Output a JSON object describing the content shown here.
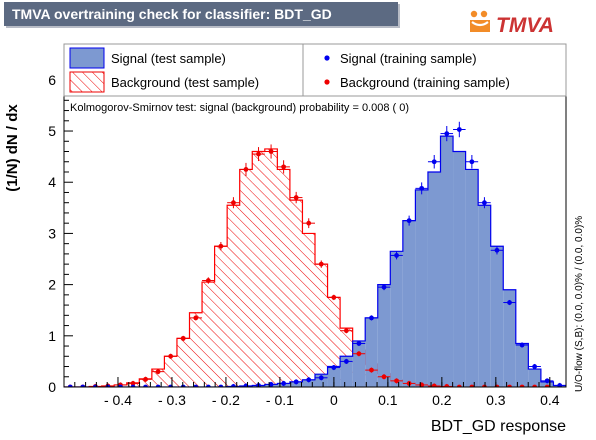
{
  "header": {
    "title": "TMVA overtraining check for classifier: BDT_GD",
    "logo_text": "TMVA"
  },
  "chart_data": {
    "type": "histogram",
    "xlabel": "BDT_GD response",
    "ylabel": "(1/N) dN / dx",
    "xlim": [
      -0.5,
      0.43
    ],
    "ylim": [
      0,
      6.7
    ],
    "x_ticks": [
      -0.4,
      -0.3,
      -0.2,
      -0.1,
      0,
      0.1,
      0.2,
      0.3,
      0.4
    ],
    "x_tick_labels": [
      "- 0.4",
      "- 0.3",
      "- 0.2",
      "- 0.1",
      "0",
      "0.1",
      "0.2",
      "0.3",
      "0.4"
    ],
    "y_ticks": [
      0,
      1,
      2,
      3,
      4,
      5,
      6
    ],
    "y_tick_labels": [
      "0",
      "1",
      "2",
      "3",
      "4",
      "5",
      "6"
    ],
    "grid": false,
    "bin_edges_range": [
      -0.5,
      0.43
    ],
    "bin_count": 40,
    "ks_text": "Kolmogorov-Smirnov test: signal (background) probability = 0.008 (    0)",
    "overflow_text": "U/O-flow (S,B): (0.0, 0.0)% / (0.0, 0.0)%",
    "legend": [
      {
        "label": "Signal (test sample)",
        "style": "filled"
      },
      {
        "label": "Background (test sample)",
        "style": "hatched"
      },
      {
        "label": "Signal (training sample)",
        "style": "marker-blue"
      },
      {
        "label": "Background (training sample)",
        "style": "marker-red"
      }
    ],
    "series": [
      {
        "name": "Signal (test sample)",
        "color": "#7d99d1",
        "edge_color": "#0000ee",
        "values": [
          0,
          0,
          0,
          0,
          0,
          0,
          0,
          0,
          0,
          0,
          0,
          0,
          0,
          0.01,
          0.02,
          0.03,
          0.05,
          0.07,
          0.1,
          0.14,
          0.25,
          0.4,
          0.6,
          0.9,
          1.35,
          2.0,
          2.65,
          3.25,
          3.85,
          4.2,
          4.9,
          4.6,
          4.25,
          3.55,
          2.75,
          1.9,
          0.85,
          0.35,
          0.1,
          0.03
        ]
      },
      {
        "name": "Background (test sample)",
        "color": "#cc3333",
        "edge_color": "#ff0000",
        "values": [
          0,
          0,
          0.01,
          0.02,
          0.04,
          0.08,
          0.16,
          0.35,
          0.6,
          0.95,
          1.45,
          2.05,
          2.75,
          3.55,
          4.25,
          4.6,
          4.65,
          4.25,
          3.65,
          3.0,
          2.4,
          1.75,
          1.15,
          0.72,
          0.45,
          0.26,
          0.14,
          0.08,
          0.04,
          0.02,
          0.01,
          0,
          0,
          0,
          0,
          0,
          0,
          0,
          0,
          0
        ]
      },
      {
        "name": "Signal (training sample)",
        "color": "#0000ee",
        "values": [
          0,
          0,
          0,
          0,
          0,
          0,
          0,
          0,
          0,
          0,
          0,
          0,
          0,
          0.01,
          0.02,
          0.03,
          0.05,
          0.07,
          0.1,
          0.14,
          0.18,
          0.38,
          0.5,
          0.85,
          1.35,
          1.95,
          2.57,
          3.25,
          3.88,
          4.4,
          4.95,
          5.03,
          4.4,
          3.6,
          2.67,
          1.65,
          0.82,
          0.4,
          0.12,
          0.03
        ]
      },
      {
        "name": "Background (training sample)",
        "color": "#ee0000",
        "values": [
          0,
          0,
          0.01,
          0.02,
          0.04,
          0.07,
          0.15,
          0.3,
          0.6,
          0.95,
          1.35,
          2.08,
          2.75,
          3.6,
          4.25,
          4.55,
          4.6,
          4.3,
          3.7,
          3.2,
          2.4,
          1.75,
          1.1,
          0.65,
          0.33,
          0.2,
          0.12,
          0.07,
          0.04,
          0.02,
          0.01,
          0,
          0,
          0,
          0,
          0,
          0,
          0,
          0,
          0
        ]
      }
    ]
  }
}
